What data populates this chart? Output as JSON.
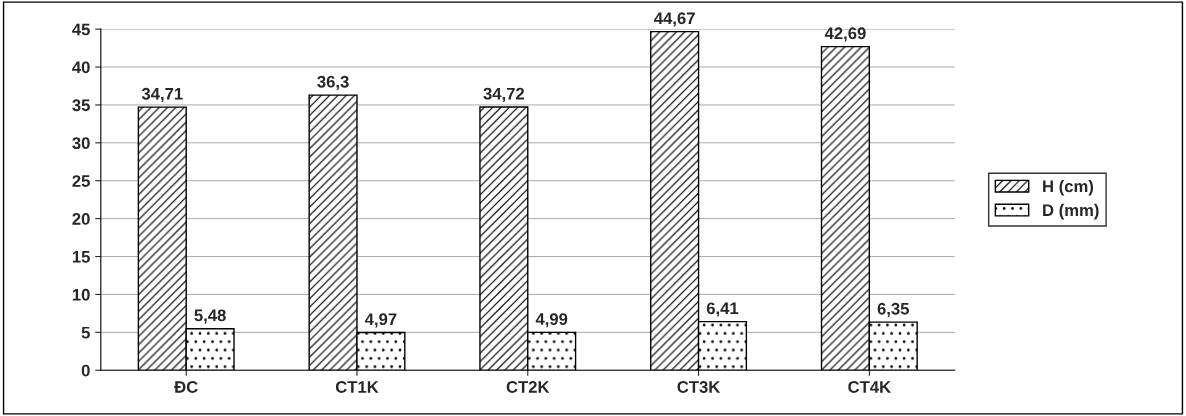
{
  "chart_data": {
    "type": "bar",
    "categories": [
      "ĐC",
      "CT1K",
      "CT2K",
      "CT3K",
      "CT4K"
    ],
    "series": [
      {
        "name": "H (cm)",
        "color": "#000000",
        "values": [
          34.71,
          36.3,
          34.72,
          44.67,
          42.69
        ],
        "value_labels": [
          "34,71",
          "36,3",
          "34,72",
          "44,67",
          "42,69"
        ]
      },
      {
        "name": "D (mm)",
        "color": "#000000",
        "values": [
          5.48,
          4.97,
          4.99,
          6.41,
          6.35
        ],
        "value_labels": [
          "5,48",
          "4,97",
          "4,99",
          "6,41",
          "6,35"
        ]
      }
    ],
    "ylim": [
      0,
      45
    ],
    "yticks": [
      0,
      5,
      10,
      15,
      20,
      25,
      30,
      35,
      40,
      45
    ],
    "grid": "y",
    "legend": "right"
  }
}
